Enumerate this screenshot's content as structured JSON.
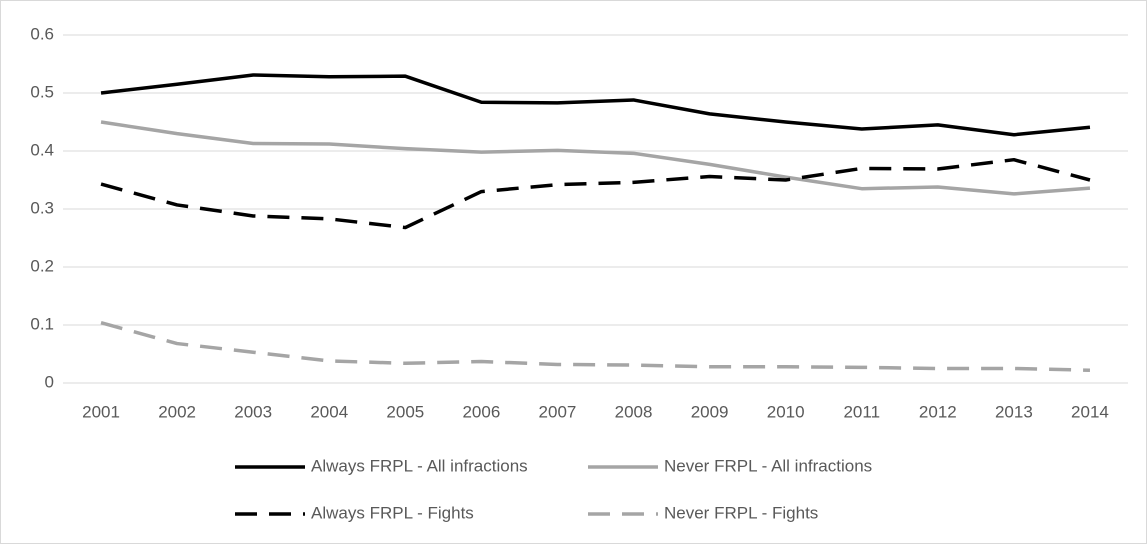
{
  "chart_data": {
    "type": "line",
    "categories": [
      "2001",
      "2002",
      "2003",
      "2004",
      "2005",
      "2006",
      "2007",
      "2008",
      "2009",
      "2010",
      "2011",
      "2012",
      "2013",
      "2014"
    ],
    "series": [
      {
        "name": "Always FRPL - All infractions",
        "color": "#000000",
        "dash": false,
        "values": [
          0.5,
          0.515,
          0.531,
          0.528,
          0.529,
          0.484,
          0.483,
          0.488,
          0.464,
          0.45,
          0.438,
          0.445,
          0.428,
          0.441
        ]
      },
      {
        "name": "Never FRPL - All infractions",
        "color": "#a5a5a5",
        "dash": false,
        "values": [
          0.45,
          0.43,
          0.413,
          0.412,
          0.404,
          0.398,
          0.401,
          0.396,
          0.377,
          0.355,
          0.335,
          0.338,
          0.326,
          0.336
        ]
      },
      {
        "name": "Always FRPL - Fights",
        "color": "#000000",
        "dash": true,
        "values": [
          0.343,
          0.307,
          0.288,
          0.283,
          0.268,
          0.33,
          0.342,
          0.346,
          0.356,
          0.35,
          0.37,
          0.369,
          0.385,
          0.35
        ]
      },
      {
        "name": "Never FRPL - Fights",
        "color": "#a5a5a5",
        "dash": true,
        "values": [
          0.104,
          0.068,
          0.053,
          0.038,
          0.034,
          0.037,
          0.032,
          0.031,
          0.028,
          0.028,
          0.027,
          0.025,
          0.025,
          0.022
        ]
      }
    ],
    "ylim": [
      0,
      0.6
    ],
    "yticks": [
      0,
      0.1,
      0.2,
      0.3,
      0.4,
      0.5,
      0.6
    ],
    "grid": true,
    "legend": "bottom"
  }
}
